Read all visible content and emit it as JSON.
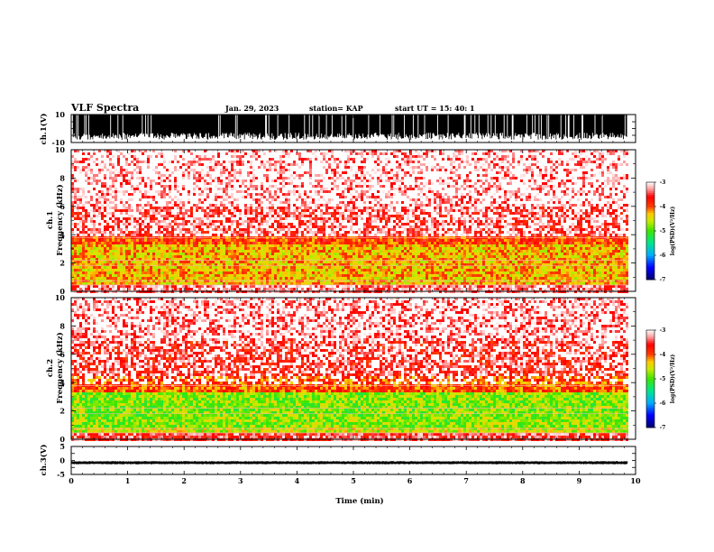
{
  "header": {
    "title": "VLF Spectra",
    "date": "Jan. 29, 2023",
    "station": "station= KAP",
    "start": "start  UT  =   15: 40: 1"
  },
  "chart_data": [
    {
      "type": "line",
      "name": "ch1-waveform",
      "ylabel": "ch.1(V)",
      "ylim": [
        -10,
        10
      ],
      "y_ticks": [
        "10",
        "-10"
      ],
      "xlim": [
        0,
        10
      ],
      "description_visible": "saturated waveform between roughly -6 and 10 V"
    },
    {
      "type": "heatmap",
      "name": "ch1-spectrogram",
      "ylabel": "ch.1\nFrequency  (kHz)",
      "ylim": [
        0,
        10
      ],
      "y_ticks": [
        "0",
        "2",
        "4",
        "6",
        "8",
        "10"
      ],
      "xlim": [
        0,
        9.85
      ],
      "colorbar": {
        "label": "log(PSD)(V²/Hz)",
        "ticks": [
          "-3",
          "-4",
          "-5",
          "-6",
          "-7"
        ],
        "range": [
          -7,
          -3
        ]
      },
      "bands": [
        {
          "from_khz": 0.0,
          "to_khz": 0.5,
          "level": -3.3
        },
        {
          "from_khz": 0.5,
          "to_khz": 1.0,
          "level": -4.3
        },
        {
          "from_khz": 1.0,
          "to_khz": 3.5,
          "level": -4.3
        },
        {
          "from_khz": 3.5,
          "to_khz": 4.0,
          "level": -3.9
        },
        {
          "from_khz": 4.0,
          "to_khz": 6.0,
          "level": -3.5
        },
        {
          "from_khz": 6.0,
          "to_khz": 10.0,
          "level": -3.2
        }
      ]
    },
    {
      "type": "heatmap",
      "name": "ch2-spectrogram",
      "ylabel": "ch.2\nFrequency  (kHz)",
      "ylim": [
        0,
        10
      ],
      "y_ticks": [
        "0",
        "2",
        "4",
        "6",
        "8",
        "10"
      ],
      "xlim": [
        0,
        9.85
      ],
      "colorbar": {
        "label": "log(PSD)(V²/Hz)",
        "ticks": [
          "-3",
          "-4",
          "-5",
          "-6",
          "-7"
        ],
        "range": [
          -7,
          -3
        ]
      },
      "bands": [
        {
          "from_khz": 0.0,
          "to_khz": 0.5,
          "level": -3.5
        },
        {
          "from_khz": 0.5,
          "to_khz": 1.0,
          "level": -4.6
        },
        {
          "from_khz": 1.0,
          "to_khz": 3.5,
          "level": -4.8
        },
        {
          "from_khz": 3.5,
          "to_khz": 4.5,
          "level": -4.0
        },
        {
          "from_khz": 4.5,
          "to_khz": 7.0,
          "level": -3.6
        },
        {
          "from_khz": 7.0,
          "to_khz": 10.0,
          "level": -3.3
        }
      ]
    },
    {
      "type": "line",
      "name": "ch3-waveform",
      "ylabel": "ch.3(V)",
      "ylim": [
        -5,
        5
      ],
      "y_ticks": [
        "5",
        "0",
        "-5"
      ],
      "xlim": [
        0,
        10
      ],
      "xlabel": "Time  (min)",
      "x_ticks": [
        "0",
        "1",
        "2",
        "3",
        "4",
        "5",
        "6",
        "7",
        "8",
        "9",
        "10"
      ],
      "level_range": [
        -1.2,
        -0.4
      ]
    }
  ]
}
